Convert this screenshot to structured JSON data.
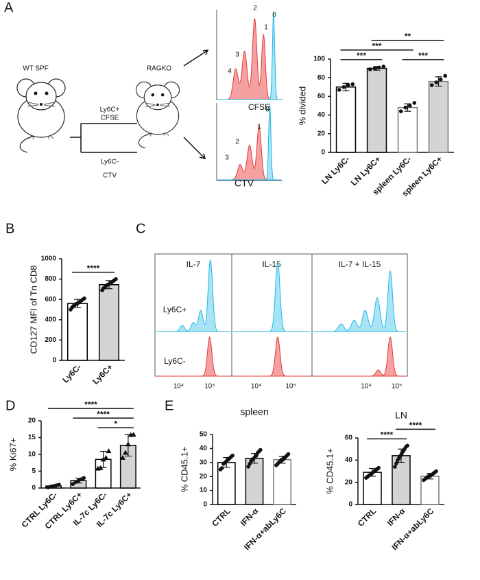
{
  "panel_labels": [
    "A",
    "B",
    "C",
    "D",
    "E"
  ],
  "schematic": {
    "donor": "WT SPF",
    "recipient": "RAGKO",
    "top_arm": "Ly6C+",
    "top_dye": "CFSE",
    "bottom_arm": "Ly6C-",
    "bottom_dye": "CTV"
  },
  "flow_A": {
    "top": {
      "xlabel": "CFSE",
      "peaks": [
        "4",
        "3",
        "2",
        "1",
        "0"
      ]
    },
    "bottom": {
      "xlabel": "CTV",
      "peaks": [
        "3",
        "2",
        "1",
        "0"
      ]
    }
  },
  "flow_C": {
    "columns": [
      "IL-7",
      "IL-15",
      "IL-7 + IL-15"
    ],
    "rows": [
      "Ly6C+",
      "Ly6C-"
    ],
    "xticks": [
      "10⁴",
      "10⁵"
    ]
  },
  "chart_data": [
    {
      "type": "bar",
      "ylabel": "% divided",
      "categories": [
        "LN Ly6C-",
        "LN Ly6C+",
        "spleen Ly6C-",
        "spleen Ly6C+"
      ],
      "values": [
        70,
        90,
        48,
        76
      ],
      "errors": [
        4,
        2,
        4,
        5
      ],
      "points": [
        [
          67,
          70,
          72,
          73
        ],
        [
          89,
          90,
          91,
          92
        ],
        [
          44,
          48,
          50,
          53
        ],
        [
          72,
          75,
          78,
          82
        ]
      ],
      "colors": [
        "#ffffff",
        "#d4d4d4",
        "#ffffff",
        "#d4d4d4"
      ],
      "edgecolors": [
        "#000000",
        "#000000",
        "#777777",
        "#777777"
      ],
      "ylim": [
        0,
        100
      ],
      "yticks": [
        0,
        20,
        40,
        60,
        80,
        100
      ],
      "significance": [
        {
          "between": [
            "LN Ly6C-",
            "LN Ly6C+"
          ],
          "label": "***"
        },
        {
          "between": [
            "spleen Ly6C-",
            "spleen Ly6C+"
          ],
          "label": "***"
        },
        {
          "between": [
            "LN Ly6C-",
            "spleen Ly6C-"
          ],
          "label": "***"
        },
        {
          "between": [
            "LN Ly6C+",
            "spleen Ly6C+"
          ],
          "label": "**"
        }
      ]
    },
    {
      "type": "bar",
      "ylabel": "CD127 MFI of Tn CD8",
      "categories": [
        "Ly6C-",
        "Ly6C+"
      ],
      "values": [
        560,
        745
      ],
      "errors": [
        40,
        40
      ],
      "points": [
        [
          500,
          520,
          535,
          545,
          555,
          560,
          570,
          580,
          590,
          600,
          610
        ],
        [
          690,
          710,
          720,
          735,
          745,
          750,
          760,
          770,
          780,
          790,
          800
        ]
      ],
      "colors": [
        "#ffffff",
        "#d4d4d4"
      ],
      "edgecolors": [
        "#000000",
        "#000000"
      ],
      "ylim": [
        0,
        1000
      ],
      "yticks": [
        0,
        200,
        400,
        600,
        800,
        1000
      ],
      "significance": [
        {
          "between": [
            "Ly6C-",
            "Ly6C+"
          ],
          "label": "****"
        }
      ]
    },
    {
      "type": "bar",
      "ylabel": "% Ki67+",
      "categories": [
        "CTRL Ly6C-",
        "CTRL Ly6C+",
        "IL-7c Ly6C-",
        "IL-7c Ly6C+"
      ],
      "values": [
        0.6,
        2.2,
        8.5,
        12.7
      ],
      "errors": [
        0.3,
        0.7,
        2.4,
        3.2
      ],
      "points": [
        [
          0.2,
          0.4,
          0.6,
          0.8,
          1.0
        ],
        [
          1.2,
          1.8,
          2.2,
          2.6,
          3.0
        ],
        [
          5.8,
          6.0,
          8.5,
          9.0,
          11.0
        ],
        [
          9.0,
          10.5,
          13.0,
          15.8,
          15.9
        ]
      ],
      "markers": [
        "circle",
        "circle",
        "triangle",
        "triangle"
      ],
      "colors": [
        "#ffffff",
        "#d4d4d4",
        "#ffffff",
        "#d4d4d4"
      ],
      "edgecolors": [
        "#000000",
        "#000000",
        "#000000",
        "#000000"
      ],
      "ylim": [
        0,
        20
      ],
      "yticks": [
        0,
        5,
        10,
        15,
        20
      ],
      "significance": [
        {
          "between": [
            "IL-7c Ly6C-",
            "IL-7c Ly6C+"
          ],
          "label": "*"
        },
        {
          "between": [
            "CTRL Ly6C+",
            "IL-7c Ly6C+"
          ],
          "label": "****"
        },
        {
          "between": [
            "CTRL Ly6C-",
            "IL-7c Ly6C+"
          ],
          "label": "****"
        }
      ]
    },
    {
      "type": "bar",
      "title": "spleen",
      "ylabel": "% CD45.1+",
      "categories": [
        "CTRL",
        "IFN-α",
        "IFN-α+abLy6C"
      ],
      "values": [
        30,
        33,
        32
      ],
      "errors": [
        3.5,
        3.5,
        2.5
      ],
      "points": [
        [
          25,
          26,
          29,
          30,
          31,
          32,
          33,
          34,
          35
        ],
        [
          27,
          29,
          31,
          32,
          33,
          34,
          35,
          37,
          38,
          39
        ],
        [
          28,
          29,
          30,
          31,
          32,
          32,
          33,
          34,
          35,
          36
        ]
      ],
      "colors": [
        "#ffffff",
        "#d4d4d4",
        "#ffffff"
      ],
      "edgecolors": [
        "#000000",
        "#000000",
        "#777777"
      ],
      "ylim": [
        0,
        50
      ],
      "yticks": [
        0,
        10,
        20,
        30,
        40,
        50
      ]
    },
    {
      "type": "bar",
      "title": "LN",
      "ylabel": "% CD45.1+",
      "categories": [
        "CTRL",
        "IFN-α",
        "IFN-α+abLy6C"
      ],
      "values": [
        29,
        44,
        25.5
      ],
      "errors": [
        3.5,
        6,
        2.5
      ],
      "points": [
        [
          24,
          25,
          26,
          27,
          28,
          29,
          30,
          31,
          32,
          33
        ],
        [
          34,
          37,
          40,
          42,
          44,
          46,
          48,
          50,
          52,
          53
        ],
        [
          22,
          23,
          24,
          25,
          26,
          26,
          27,
          28,
          29,
          30
        ]
      ],
      "colors": [
        "#ffffff",
        "#d4d4d4",
        "#ffffff"
      ],
      "edgecolors": [
        "#000000",
        "#000000",
        "#777777"
      ],
      "ylim": [
        0,
        60
      ],
      "yticks": [
        0,
        20,
        40,
        60
      ],
      "significance": [
        {
          "between": [
            "CTRL",
            "IFN-α"
          ],
          "label": "****"
        },
        {
          "between": [
            "IFN-α",
            "IFN-α+abLy6C"
          ],
          "label": "****"
        }
      ]
    }
  ]
}
